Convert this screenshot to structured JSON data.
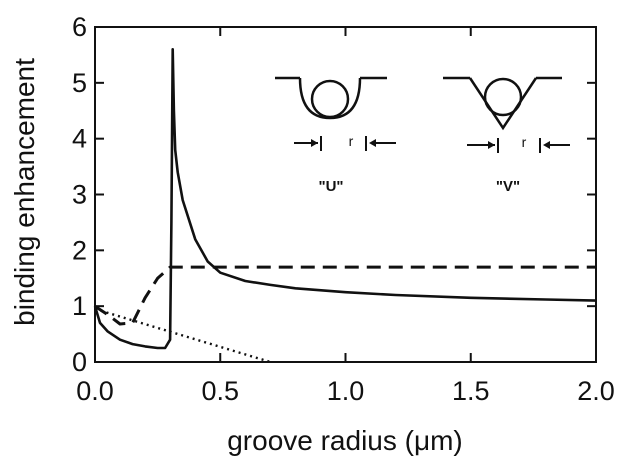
{
  "chart_data": {
    "type": "line",
    "xlabel": "groove radius (μm)",
    "ylabel": "binding enhancement",
    "xlim": [
      0.0,
      2.0
    ],
    "ylim": [
      0.0,
      6.0
    ],
    "xticks": [
      0.0,
      0.5,
      1.0,
      1.5,
      2.0
    ],
    "xtick_labels": [
      "0.0",
      "0.5",
      "1.0",
      "1.5",
      "2.0"
    ],
    "yticks": [
      0,
      1,
      2,
      3,
      4,
      5,
      6
    ],
    "ytick_labels": [
      "0",
      "1",
      "2",
      "3",
      "4",
      "5",
      "6"
    ],
    "grid": false,
    "series": [
      {
        "style": "solid",
        "x": [
          0.0,
          0.02,
          0.05,
          0.1,
          0.15,
          0.2,
          0.25,
          0.28,
          0.3,
          0.305,
          0.31,
          0.315,
          0.32,
          0.33,
          0.35,
          0.4,
          0.45,
          0.5,
          0.6,
          0.7,
          0.8,
          1.0,
          1.2,
          1.5,
          1.8,
          2.0
        ],
        "y": [
          1.0,
          0.7,
          0.55,
          0.4,
          0.32,
          0.28,
          0.25,
          0.25,
          0.4,
          2.5,
          5.6,
          4.5,
          3.8,
          3.4,
          2.9,
          2.2,
          1.8,
          1.6,
          1.45,
          1.38,
          1.32,
          1.25,
          1.2,
          1.15,
          1.12,
          1.1
        ]
      },
      {
        "style": "dashed",
        "x": [
          0.0,
          0.05,
          0.1,
          0.15,
          0.2,
          0.25,
          0.3,
          0.4,
          0.6,
          1.0,
          1.5,
          2.0
        ],
        "y": [
          1.0,
          0.85,
          0.68,
          0.7,
          1.15,
          1.5,
          1.7,
          1.7,
          1.7,
          1.7,
          1.7,
          1.7
        ]
      },
      {
        "style": "dotted",
        "x": [
          0.0,
          0.7
        ],
        "y": [
          0.95,
          0.0
        ]
      }
    ],
    "inset": {
      "labels": [
        "\"U\"",
        "\"V\""
      ],
      "dimension_label": "r"
    }
  }
}
